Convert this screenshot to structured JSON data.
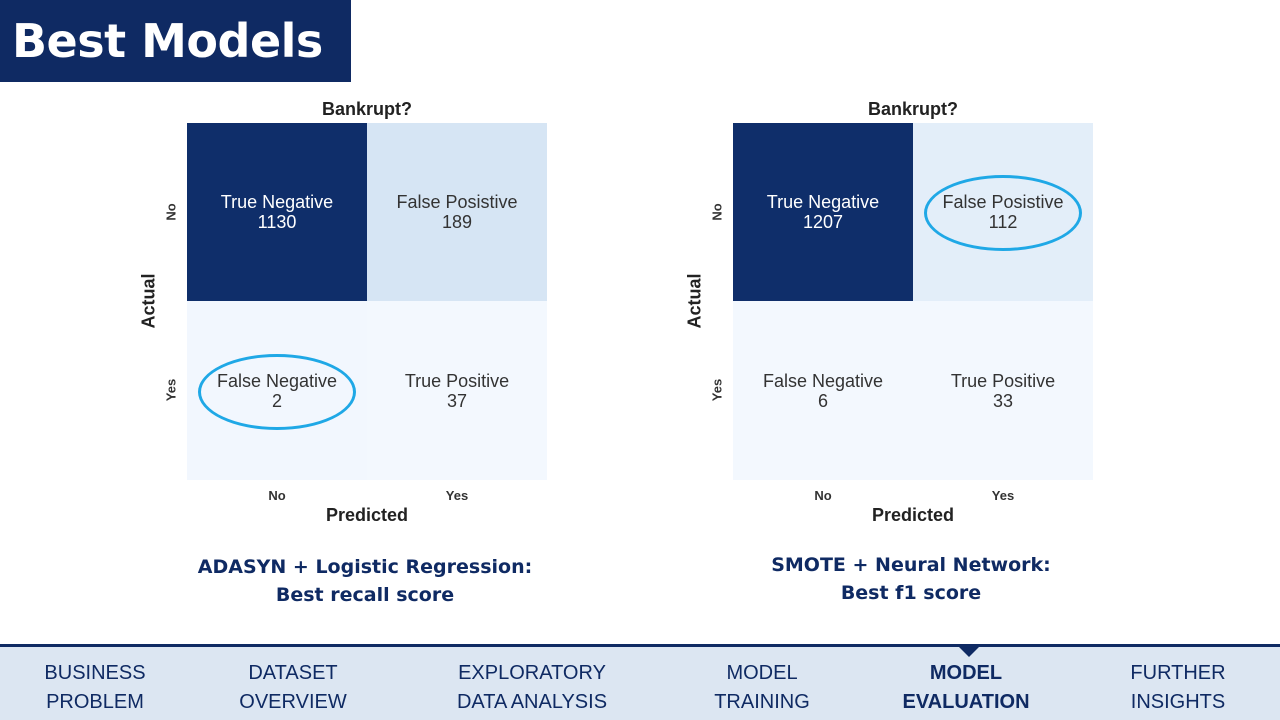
{
  "page": {
    "title": "Best Models"
  },
  "chart_data": [
    {
      "type": "heatmap",
      "title": "Bankrupt?",
      "xlabel": "Predicted",
      "ylabel": "Actual",
      "x_categories": [
        "No",
        "Yes"
      ],
      "y_categories": [
        "No",
        "Yes"
      ],
      "cells": [
        [
          {
            "label": "True Negative",
            "value": 1130
          },
          {
            "label": "False Posistive",
            "value": 189
          }
        ],
        [
          {
            "label": "False Negative",
            "value": 2
          },
          {
            "label": "True Positive",
            "value": 37
          }
        ]
      ],
      "highlight": [
        1,
        0
      ],
      "caption": [
        "ADASYN + Logistic Regression:",
        "Best recall score"
      ],
      "colors": [
        "#0f2e6a",
        "#d6e5f4",
        "#f2f7fe",
        "#f3f8fe"
      ]
    },
    {
      "type": "heatmap",
      "title": "Bankrupt?",
      "xlabel": "Predicted",
      "ylabel": "Actual",
      "x_categories": [
        "No",
        "Yes"
      ],
      "y_categories": [
        "No",
        "Yes"
      ],
      "cells": [
        [
          {
            "label": "True Negative",
            "value": 1207
          },
          {
            "label": "False Posistive",
            "value": 112
          }
        ],
        [
          {
            "label": "False Negative",
            "value": 6
          },
          {
            "label": "True Positive",
            "value": 33
          }
        ]
      ],
      "highlight": [
        0,
        1
      ],
      "caption": [
        "SMOTE + Neural Network:",
        "Best f1 score"
      ],
      "colors": [
        "#0f2e6a",
        "#e3eef9",
        "#f3f8fe",
        "#f3f8fe"
      ]
    }
  ],
  "nav": {
    "items": [
      {
        "lines": [
          "BUSINESS",
          "PROBLEM"
        ],
        "active": false
      },
      {
        "lines": [
          "DATASET",
          "OVERVIEW"
        ],
        "active": false
      },
      {
        "lines": [
          "EXPLORATORY",
          "DATA ANALYSIS"
        ],
        "active": false
      },
      {
        "lines": [
          "MODEL",
          "TRAINING"
        ],
        "active": false
      },
      {
        "lines": [
          "MODEL",
          "EVALUATION"
        ],
        "active": true
      },
      {
        "lines": [
          "FURTHER",
          "INSIGHTS"
        ],
        "active": false
      }
    ],
    "accent": "#0f2a63",
    "background": "#dce6f2"
  }
}
